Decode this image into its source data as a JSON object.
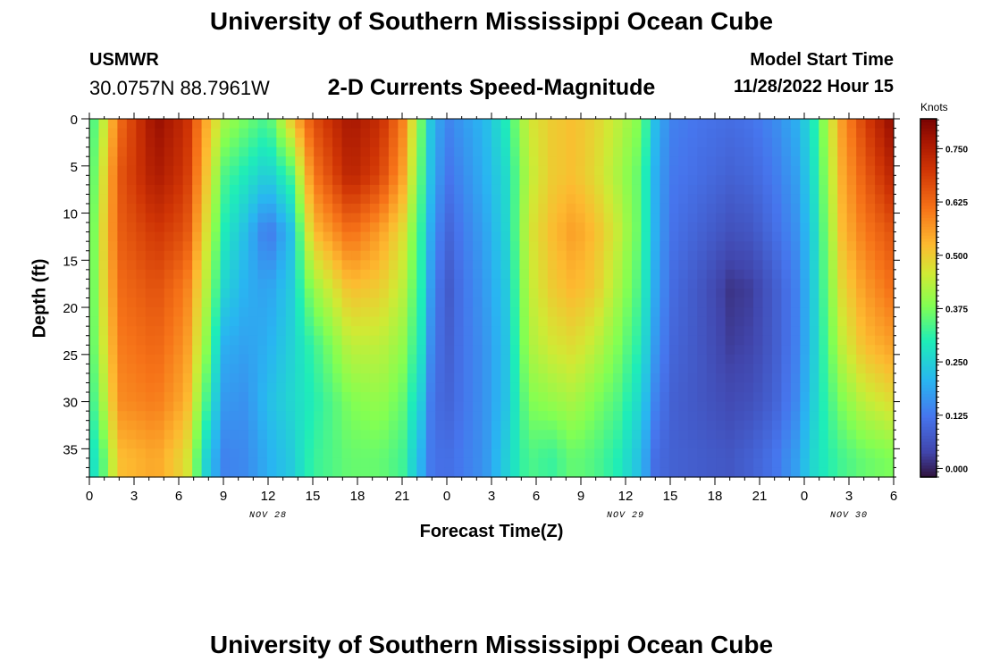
{
  "header": {
    "title": "University of Southern Mississippi Ocean Cube",
    "station": "USMWR",
    "coords": "30.0757N  88.7961W",
    "subtitle": "2-D Currents Speed-Magnitude",
    "start_label": "Model Start Time",
    "start_value": "11/28/2022 Hour 15"
  },
  "footer": {
    "title": "University of Southern Mississippi Ocean Cube"
  },
  "chart_data": {
    "type": "heatmap",
    "title": "2-D Currents Speed-Magnitude",
    "xlabel": "Forecast Time(Z)",
    "ylabel": "Depth (ft)",
    "x_unit": "hours since 11/28 00Z",
    "xlim": [
      0,
      54
    ],
    "ylim": [
      0,
      38
    ],
    "y_inverted": true,
    "x_tick_values": [
      0,
      3,
      6,
      9,
      12,
      15,
      18,
      21,
      24,
      27,
      30,
      33,
      36,
      39,
      42,
      45,
      48,
      51,
      54
    ],
    "x_tick_labels": [
      "0",
      "3",
      "6",
      "9",
      "12",
      "15",
      "18",
      "21",
      "0",
      "3",
      "6",
      "9",
      "12",
      "15",
      "18",
      "21",
      "0",
      "3",
      "6"
    ],
    "date_labels": [
      {
        "x": 12,
        "text": "NOV 28"
      },
      {
        "x": 36,
        "text": "NOV 29"
      },
      {
        "x": 51,
        "text": "NOV 30"
      }
    ],
    "y_ticks": [
      0,
      5,
      10,
      15,
      20,
      25,
      30,
      35
    ],
    "colorbar": {
      "label": "Knots",
      "min": -0.02,
      "max": 0.82,
      "ticks": [
        0.0,
        0.125,
        0.25,
        0.375,
        0.5,
        0.625,
        0.75
      ],
      "tick_labels": [
        "0.000",
        "0.125",
        "0.250",
        "0.375",
        "0.500",
        "0.625",
        "0.750"
      ]
    },
    "depth_levels": [
      0,
      6,
      12,
      18,
      24,
      30,
      36
    ],
    "time_samples": [
      {
        "x": 0.0,
        "speed": [
          0.3,
          0.31,
          0.32,
          0.32,
          0.32,
          0.3,
          0.26
        ]
      },
      {
        "x": 0.8,
        "speed": [
          0.42,
          0.45,
          0.47,
          0.46,
          0.44,
          0.4,
          0.33
        ]
      },
      {
        "x": 2.0,
        "speed": [
          0.62,
          0.65,
          0.64,
          0.62,
          0.6,
          0.58,
          0.52
        ]
      },
      {
        "x": 4.5,
        "speed": [
          0.79,
          0.76,
          0.7,
          0.66,
          0.63,
          0.6,
          0.55
        ]
      },
      {
        "x": 6.5,
        "speed": [
          0.72,
          0.7,
          0.66,
          0.6,
          0.57,
          0.54,
          0.48
        ]
      },
      {
        "x": 7.8,
        "speed": [
          0.55,
          0.52,
          0.48,
          0.44,
          0.4,
          0.34,
          0.26
        ]
      },
      {
        "x": 9.0,
        "speed": [
          0.42,
          0.34,
          0.3,
          0.26,
          0.2,
          0.17,
          0.14
        ]
      },
      {
        "x": 10.5,
        "speed": [
          0.37,
          0.29,
          0.22,
          0.2,
          0.18,
          0.16,
          0.15
        ]
      },
      {
        "x": 12.0,
        "speed": [
          0.33,
          0.24,
          0.12,
          0.18,
          0.2,
          0.22,
          0.2
        ]
      },
      {
        "x": 13.5,
        "speed": [
          0.5,
          0.33,
          0.22,
          0.24,
          0.25,
          0.26,
          0.24
        ]
      },
      {
        "x": 15.0,
        "speed": [
          0.66,
          0.6,
          0.52,
          0.4,
          0.32,
          0.3,
          0.32
        ]
      },
      {
        "x": 17.5,
        "speed": [
          0.77,
          0.74,
          0.62,
          0.52,
          0.44,
          0.38,
          0.36
        ]
      },
      {
        "x": 19.5,
        "speed": [
          0.72,
          0.68,
          0.56,
          0.5,
          0.44,
          0.4,
          0.36
        ]
      },
      {
        "x": 21.0,
        "speed": [
          0.6,
          0.56,
          0.48,
          0.44,
          0.4,
          0.36,
          0.33
        ]
      },
      {
        "x": 22.3,
        "speed": [
          0.36,
          0.34,
          0.31,
          0.3,
          0.28,
          0.24,
          0.2
        ]
      },
      {
        "x": 23.0,
        "speed": [
          0.22,
          0.21,
          0.18,
          0.16,
          0.14,
          0.12,
          0.12
        ]
      },
      {
        "x": 24.0,
        "speed": [
          0.14,
          0.12,
          0.09,
          0.07,
          0.08,
          0.09,
          0.11
        ]
      },
      {
        "x": 25.0,
        "speed": [
          0.17,
          0.15,
          0.13,
          0.12,
          0.12,
          0.12,
          0.13
        ]
      },
      {
        "x": 26.5,
        "speed": [
          0.21,
          0.2,
          0.18,
          0.17,
          0.16,
          0.16,
          0.16
        ]
      },
      {
        "x": 28.0,
        "speed": [
          0.3,
          0.27,
          0.26,
          0.24,
          0.23,
          0.23,
          0.25
        ]
      },
      {
        "x": 29.5,
        "speed": [
          0.46,
          0.44,
          0.46,
          0.44,
          0.42,
          0.38,
          0.34
        ]
      },
      {
        "x": 31.0,
        "speed": [
          0.5,
          0.5,
          0.52,
          0.5,
          0.46,
          0.4,
          0.32
        ]
      },
      {
        "x": 32.5,
        "speed": [
          0.52,
          0.52,
          0.56,
          0.53,
          0.48,
          0.42,
          0.36
        ]
      },
      {
        "x": 34.0,
        "speed": [
          0.49,
          0.48,
          0.52,
          0.5,
          0.44,
          0.38,
          0.34
        ]
      },
      {
        "x": 35.5,
        "speed": [
          0.44,
          0.42,
          0.45,
          0.42,
          0.38,
          0.34,
          0.3
        ]
      },
      {
        "x": 37.0,
        "speed": [
          0.38,
          0.35,
          0.35,
          0.33,
          0.3,
          0.26,
          0.22
        ]
      },
      {
        "x": 38.0,
        "speed": [
          0.22,
          0.2,
          0.2,
          0.19,
          0.17,
          0.14,
          0.11
        ]
      },
      {
        "x": 39.0,
        "speed": [
          0.14,
          0.13,
          0.12,
          0.11,
          0.1,
          0.09,
          0.09
        ]
      },
      {
        "x": 41.0,
        "speed": [
          0.12,
          0.11,
          0.09,
          0.07,
          0.07,
          0.07,
          0.08
        ]
      },
      {
        "x": 43.0,
        "speed": [
          0.11,
          0.09,
          0.06,
          0.02,
          0.03,
          0.05,
          0.07
        ]
      },
      {
        "x": 44.5,
        "speed": [
          0.12,
          0.1,
          0.07,
          0.03,
          0.04,
          0.06,
          0.09
        ]
      },
      {
        "x": 46.0,
        "speed": [
          0.15,
          0.13,
          0.11,
          0.08,
          0.08,
          0.09,
          0.12
        ]
      },
      {
        "x": 47.5,
        "speed": [
          0.2,
          0.18,
          0.16,
          0.14,
          0.14,
          0.15,
          0.18
        ]
      },
      {
        "x": 48.5,
        "speed": [
          0.28,
          0.26,
          0.24,
          0.23,
          0.23,
          0.24,
          0.26
        ]
      },
      {
        "x": 49.5,
        "speed": [
          0.42,
          0.4,
          0.38,
          0.36,
          0.34,
          0.32,
          0.3
        ]
      },
      {
        "x": 50.5,
        "speed": [
          0.56,
          0.54,
          0.52,
          0.48,
          0.44,
          0.38,
          0.33
        ]
      },
      {
        "x": 52.0,
        "speed": [
          0.68,
          0.64,
          0.6,
          0.56,
          0.52,
          0.44,
          0.36
        ]
      },
      {
        "x": 54.0,
        "speed": [
          0.8,
          0.74,
          0.66,
          0.62,
          0.56,
          0.48,
          0.38
        ]
      }
    ]
  }
}
